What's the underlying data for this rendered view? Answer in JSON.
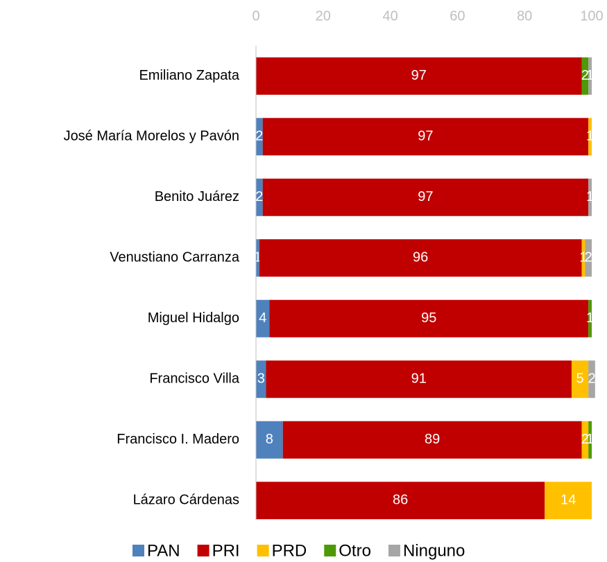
{
  "chart_data": {
    "type": "stacked-barh",
    "categories": [
      "Emiliano Zapata",
      "José María Morelos y Pavón",
      "Benito Juárez",
      "Venustiano Carranza",
      "Miguel Hidalgo",
      "Francisco Villa",
      "Francisco I. Madero",
      "Lázaro Cárdenas"
    ],
    "series": [
      {
        "name": "PAN",
        "color": "#4f81bd",
        "values": [
          null,
          2,
          2,
          1,
          4,
          3,
          8,
          null
        ]
      },
      {
        "name": "PRI",
        "color": "#c00000",
        "values": [
          97,
          97,
          97,
          96,
          95,
          91,
          89,
          86
        ]
      },
      {
        "name": "PRD",
        "color": "#ffc000",
        "values": [
          null,
          1,
          null,
          1,
          null,
          5,
          2,
          14
        ]
      },
      {
        "name": "Otro",
        "color": "#4e9a06",
        "values": [
          2,
          null,
          null,
          null,
          1,
          null,
          1,
          null
        ]
      },
      {
        "name": "Ninguno",
        "color": "#a6a6a6",
        "values": [
          1,
          null,
          1,
          2,
          null,
          2,
          null,
          null
        ]
      }
    ],
    "xlim": [
      0,
      100
    ],
    "xticks": [
      0,
      20,
      40,
      60,
      80,
      100
    ],
    "legend": "bottom"
  }
}
